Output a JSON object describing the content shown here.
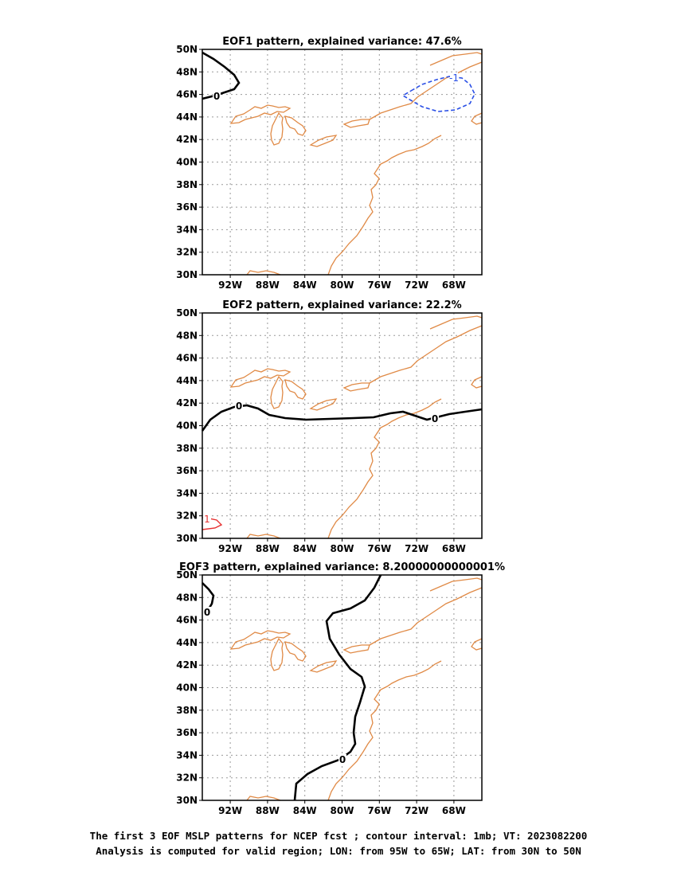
{
  "colors": {
    "coast": "#e08a46",
    "contour_zero": "#000000",
    "contour_negative": "#2b50e6",
    "contour_positive": "#e63030",
    "grid": "#9a9a9a"
  },
  "panels": [
    {
      "title": "EOF1 pattern, explained variance: 47.6%",
      "contour_labels": [
        "0",
        "-1"
      ]
    },
    {
      "title": "EOF2 pattern, explained variance: 22.2%",
      "contour_labels": [
        "0",
        "0",
        "1"
      ]
    },
    {
      "title": "EOF3 pattern, explained variance: 8.20000000000001%",
      "contour_labels": [
        "0",
        "0"
      ]
    }
  ],
  "lon_ticks": [
    "92W",
    "88W",
    "84W",
    "80W",
    "76W",
    "72W",
    "68W"
  ],
  "lat_ticks": [
    "30N",
    "32N",
    "34N",
    "36N",
    "38N",
    "40N",
    "42N",
    "44N",
    "46N",
    "48N",
    "50N"
  ],
  "map_extent": {
    "lon": [
      -95,
      -65
    ],
    "lat": [
      30,
      50
    ]
  },
  "footer": {
    "line1": "The first 3 EOF MSLP patterns for NCEP fcst ; contour interval: 1mb; VT: 2023082200",
    "line2": "Analysis is computed for valid region; LON: from 95W to 65W; LAT: from 30N to 50N"
  }
}
